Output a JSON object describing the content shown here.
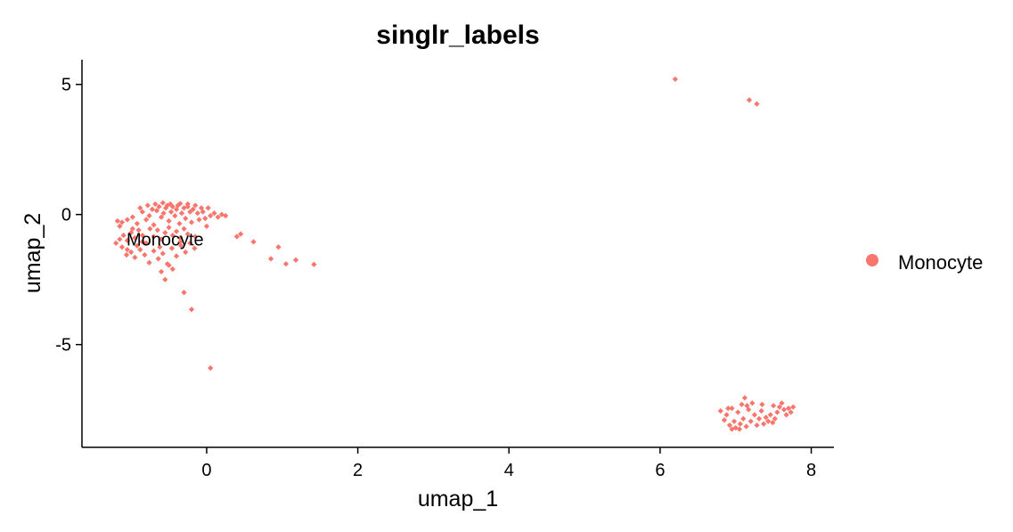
{
  "chart_data": {
    "type": "scatter",
    "title": "singlr_labels",
    "xlabel": "umap_1",
    "ylabel": "umap_2",
    "xlim": [
      -1.65,
      8.3
    ],
    "ylim": [
      -8.95,
      5.95
    ],
    "xticks": [
      0,
      2,
      4,
      6,
      8
    ],
    "xtick_labels": [
      "0",
      "2",
      "4",
      "6",
      "8"
    ],
    "yticks": [
      5,
      0,
      -5
    ],
    "ytick_labels": [
      "5",
      "0",
      "-5"
    ],
    "grid": false,
    "legend_position": "right",
    "series": [
      {
        "name": "Monocyte",
        "color": "#F8766D",
        "points": [
          [
            -1.18,
            -0.25
          ],
          [
            -1.12,
            -0.3
          ],
          [
            -1.15,
            -0.45
          ],
          [
            -1.05,
            -0.2
          ],
          [
            -0.98,
            -0.1
          ],
          [
            -0.92,
            -0.35
          ],
          [
            -0.85,
            0.1
          ],
          [
            -0.8,
            -0.2
          ],
          [
            -0.76,
            -0.05
          ],
          [
            -0.72,
            0.2
          ],
          [
            -0.7,
            -0.4
          ],
          [
            -0.66,
            0.15
          ],
          [
            -0.63,
            0.3
          ],
          [
            -0.6,
            -0.1
          ],
          [
            -0.57,
            0.05
          ],
          [
            -0.54,
            0.25
          ],
          [
            -0.52,
            0.35
          ],
          [
            -0.5,
            -0.25
          ],
          [
            -0.47,
            0.1
          ],
          [
            -0.45,
            0.3
          ],
          [
            -0.42,
            -0.05
          ],
          [
            -0.4,
            0.2
          ],
          [
            -0.38,
            0.35
          ],
          [
            -0.36,
            -0.35
          ],
          [
            -0.33,
            0.05
          ],
          [
            -0.3,
            0.25
          ],
          [
            -0.28,
            -0.15
          ],
          [
            -0.25,
            0.3
          ],
          [
            -0.22,
            0.1
          ],
          [
            -0.2,
            -0.3
          ],
          [
            -0.18,
            0.2
          ],
          [
            -0.15,
            0.35
          ],
          [
            -0.12,
            0.05
          ],
          [
            -0.1,
            -0.2
          ],
          [
            -0.07,
            0.25
          ],
          [
            -0.05,
            0.1
          ],
          [
            -0.02,
            -0.15
          ],
          [
            0.02,
            0.25
          ],
          [
            0.05,
            -0.05
          ],
          [
            0.1,
            0.05
          ],
          [
            0.15,
            -0.1
          ],
          [
            0.2,
            0.0
          ],
          [
            0.25,
            -0.05
          ],
          [
            -0.88,
            0.25
          ],
          [
            -0.78,
            0.35
          ],
          [
            -0.68,
            0.4
          ],
          [
            -0.58,
            0.45
          ],
          [
            -0.48,
            0.4
          ],
          [
            -0.35,
            0.42
          ],
          [
            -0.25,
            0.4
          ],
          [
            -1.2,
            -1.1
          ],
          [
            -1.15,
            -0.95
          ],
          [
            -1.1,
            -0.8
          ],
          [
            -1.05,
            -1.0
          ],
          [
            -1.0,
            -0.7
          ],
          [
            -0.95,
            -0.9
          ],
          [
            -0.9,
            -0.6
          ],
          [
            -0.85,
            -0.8
          ],
          [
            -0.8,
            -1.1
          ],
          [
            -0.75,
            -0.55
          ],
          [
            -0.7,
            -0.85
          ],
          [
            -0.65,
            -0.6
          ],
          [
            -0.6,
            -0.95
          ],
          [
            -0.55,
            -0.7
          ],
          [
            -0.5,
            -0.5
          ],
          [
            -0.45,
            -0.8
          ],
          [
            -0.4,
            -0.65
          ],
          [
            -0.35,
            -0.9
          ],
          [
            -0.3,
            -0.55
          ],
          [
            -0.25,
            -0.75
          ],
          [
            -1.0,
            -1.45
          ],
          [
            -0.95,
            -1.65
          ],
          [
            -0.88,
            -1.35
          ],
          [
            -0.82,
            -1.55
          ],
          [
            -0.76,
            -1.85
          ],
          [
            -0.7,
            -1.4
          ],
          [
            -0.64,
            -1.7
          ],
          [
            -0.58,
            -1.5
          ],
          [
            -0.52,
            -1.9
          ],
          [
            -0.46,
            -1.3
          ],
          [
            -0.4,
            -1.6
          ],
          [
            -0.34,
            -1.2
          ],
          [
            -0.28,
            -1.45
          ],
          [
            -0.22,
            -1.1
          ],
          [
            -0.16,
            -1.3
          ],
          [
            -1.12,
            -1.25
          ],
          [
            -1.06,
            -1.55
          ],
          [
            -0.92,
            -1.2
          ],
          [
            -0.6,
            -2.2
          ],
          [
            -0.55,
            -2.5
          ],
          [
            -0.5,
            -1.95
          ],
          [
            -0.45,
            -2.1
          ],
          [
            -0.3,
            -3.0
          ],
          [
            -0.2,
            -3.65
          ],
          [
            0.05,
            -5.9
          ],
          [
            0.4,
            -0.85
          ],
          [
            0.45,
            -0.75
          ],
          [
            0.62,
            -1.05
          ],
          [
            0.85,
            -1.7
          ],
          [
            0.95,
            -1.25
          ],
          [
            1.05,
            -1.9
          ],
          [
            1.18,
            -1.75
          ],
          [
            1.42,
            -1.92
          ],
          [
            -1.05,
            -1.35
          ],
          [
            -0.98,
            -0.55
          ],
          [
            -0.85,
            -1.05
          ],
          [
            -0.62,
            -1.25
          ],
          [
            -0.35,
            -1.05
          ],
          [
            -0.15,
            -0.85
          ],
          [
            0.0,
            -0.45
          ],
          [
            6.2,
            5.2
          ],
          [
            7.18,
            4.4
          ],
          [
            7.28,
            4.25
          ],
          [
            6.8,
            -7.55
          ],
          [
            6.85,
            -7.9
          ],
          [
            6.88,
            -7.7
          ],
          [
            6.92,
            -8.1
          ],
          [
            6.95,
            -7.45
          ],
          [
            6.98,
            -7.95
          ],
          [
            7.0,
            -8.2
          ],
          [
            7.03,
            -7.6
          ],
          [
            7.06,
            -8.05
          ],
          [
            7.08,
            -7.3
          ],
          [
            7.1,
            -7.85
          ],
          [
            7.12,
            -7.05
          ],
          [
            7.14,
            -8.15
          ],
          [
            7.17,
            -7.5
          ],
          [
            7.2,
            -7.95
          ],
          [
            7.22,
            -7.25
          ],
          [
            7.25,
            -7.7
          ],
          [
            7.28,
            -8.1
          ],
          [
            7.31,
            -7.85
          ],
          [
            7.34,
            -7.55
          ],
          [
            7.37,
            -8.05
          ],
          [
            7.4,
            -7.8
          ],
          [
            7.43,
            -7.95
          ],
          [
            7.46,
            -7.7
          ],
          [
            7.49,
            -8.0
          ],
          [
            7.52,
            -7.85
          ],
          [
            7.55,
            -7.6
          ],
          [
            7.58,
            -7.4
          ],
          [
            7.61,
            -7.25
          ],
          [
            7.64,
            -7.5
          ],
          [
            7.67,
            -7.7
          ],
          [
            7.7,
            -7.45
          ],
          [
            7.73,
            -7.6
          ],
          [
            7.76,
            -7.4
          ],
          [
            6.9,
            -7.45
          ],
          [
            6.95,
            -8.25
          ],
          [
            7.05,
            -8.25
          ],
          [
            7.15,
            -7.35
          ],
          [
            7.35,
            -7.3
          ],
          [
            7.5,
            -7.35
          ]
        ]
      }
    ],
    "annotations": [
      {
        "text": "Monocyte",
        "x": -0.55,
        "y": -0.95
      }
    ]
  }
}
